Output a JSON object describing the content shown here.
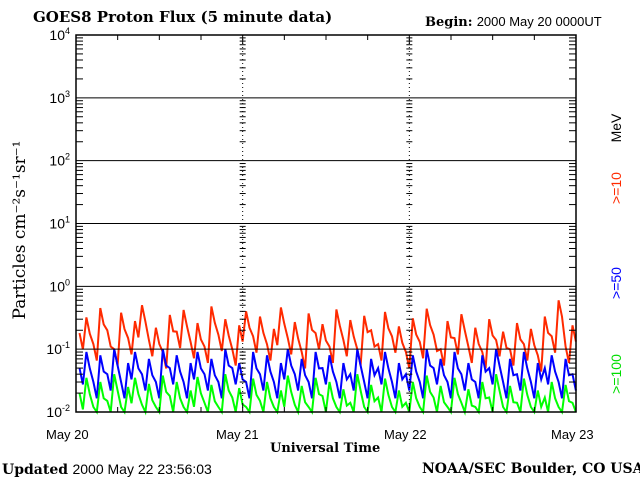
{
  "chart_data": {
    "type": "line",
    "title": "GOES8 Proton Flux (5 minute data)",
    "begin_label": "Begin:",
    "begin_value": "2000 May 20 0000UT",
    "xlabel": "Universal Time",
    "ylabel": "Particles cm⁻²s⁻¹sr⁻¹",
    "yscale": "log",
    "ylim": [
      0.01,
      10000
    ],
    "y_ticks": [
      {
        "base": "10",
        "exp": "4",
        "value": 10000
      },
      {
        "base": "10",
        "exp": "3",
        "value": 1000
      },
      {
        "base": "10",
        "exp": "2",
        "value": 100
      },
      {
        "base": "10",
        "exp": "1",
        "value": 10
      },
      {
        "base": "10",
        "exp": "0",
        "value": 1
      },
      {
        "base": "10",
        "exp": "-1",
        "value": 0.1
      },
      {
        "base": "10",
        "exp": "-2",
        "value": 0.01
      }
    ],
    "x_ticks": [
      "May 20",
      "May 21",
      "May 22",
      "May 23"
    ],
    "xlim_days": [
      0,
      3
    ],
    "grid": true,
    "legend_units": "MeV",
    "series": [
      {
        "name": ">=10",
        "color": "#ff2a00",
        "values": [
          0.18,
          0.32,
          0.12,
          0.45,
          0.2,
          0.1,
          0.38,
          0.15,
          0.28,
          0.5,
          0.14,
          0.22,
          0.09,
          0.35,
          0.19,
          0.42,
          0.13,
          0.26,
          0.11,
          0.48,
          0.17,
          0.3,
          0.1,
          0.24,
          0.4,
          0.16,
          0.33,
          0.12,
          0.21,
          0.46,
          0.15,
          0.27,
          0.09,
          0.37,
          0.18,
          0.25,
          0.11,
          0.43,
          0.14,
          0.29,
          0.1,
          0.34,
          0.2,
          0.12,
          0.39,
          0.16,
          0.23,
          0.09,
          0.31,
          0.13,
          0.44,
          0.17,
          0.1,
          0.28,
          0.15,
          0.36,
          0.11,
          0.22,
          0.09,
          0.3,
          0.14,
          0.19,
          0.1,
          0.26,
          0.12,
          0.21,
          0.08,
          0.33,
          0.16,
          0.6,
          0.11,
          0.24
        ]
      },
      {
        "name": ">=50",
        "color": "#0000ff",
        "values": [
          0.05,
          0.09,
          0.03,
          0.08,
          0.04,
          0.1,
          0.03,
          0.06,
          0.09,
          0.04,
          0.07,
          0.03,
          0.1,
          0.05,
          0.08,
          0.03,
          0.06,
          0.09,
          0.04,
          0.07,
          0.03,
          0.1,
          0.05,
          0.06,
          0.03,
          0.09,
          0.04,
          0.08,
          0.03,
          0.06,
          0.1,
          0.04,
          0.07,
          0.03,
          0.09,
          0.05,
          0.08,
          0.03,
          0.06,
          0.04,
          0.1,
          0.03,
          0.07,
          0.05,
          0.09,
          0.03,
          0.06,
          0.04,
          0.08,
          0.03,
          0.1,
          0.05,
          0.07,
          0.03,
          0.09,
          0.04,
          0.06,
          0.03,
          0.08,
          0.05,
          0.1,
          0.03,
          0.07,
          0.04,
          0.09,
          0.03,
          0.06,
          0.05,
          0.08,
          0.03,
          0.07,
          0.04
        ]
      },
      {
        "name": ">=100",
        "color": "#00ff00",
        "values": [
          0.02,
          0.035,
          0.012,
          0.03,
          0.015,
          0.04,
          0.012,
          0.025,
          0.035,
          0.013,
          0.028,
          0.012,
          0.038,
          0.018,
          0.03,
          0.012,
          0.022,
          0.036,
          0.014,
          0.027,
          0.012,
          0.04,
          0.017,
          0.024,
          0.012,
          0.034,
          0.015,
          0.03,
          0.012,
          0.022,
          0.038,
          0.013,
          0.026,
          0.012,
          0.035,
          0.018,
          0.03,
          0.012,
          0.023,
          0.014,
          0.04,
          0.012,
          0.027,
          0.017,
          0.034,
          0.012,
          0.022,
          0.014,
          0.03,
          0.012,
          0.038,
          0.017,
          0.026,
          0.012,
          0.035,
          0.014,
          0.023,
          0.012,
          0.03,
          0.017,
          0.04,
          0.012,
          0.026,
          0.014,
          0.034,
          0.012,
          0.022,
          0.017,
          0.03,
          0.012,
          0.027,
          0.014
        ]
      }
    ]
  },
  "footer": {
    "updated_label": "Updated",
    "updated_value": "2000 May 22 23:56:03",
    "credit": "NOAA/SEC Boulder, CO USA"
  }
}
